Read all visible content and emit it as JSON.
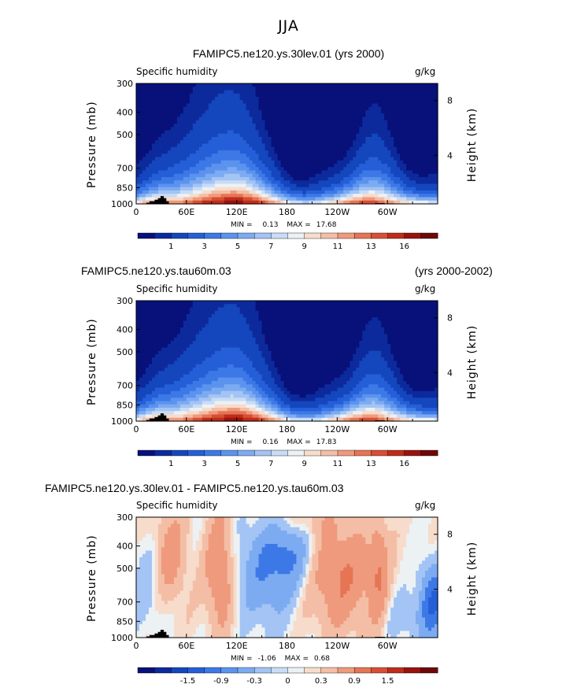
{
  "title": "JJA",
  "variable_label": "Specific humidity",
  "units_label": "g/kg",
  "y_axis_label": "Pressure (mb)",
  "y2_axis_label": "Height (km)",
  "stats_labels": {
    "min": "MIN =",
    "max": "MAX ="
  },
  "panels": [
    {
      "id": "p1",
      "run_title": "FAMIPC5.ne120.ys.30lev.01 (yrs 2000)",
      "run_years": "",
      "min": "0.13",
      "max": "17.68",
      "colorbar_labels": [
        "1",
        "3",
        "5",
        "7",
        "9",
        "11",
        "13",
        "16"
      ]
    },
    {
      "id": "p2",
      "run_title": "FAMIPC5.ne120.ys.tau60m.03",
      "run_years": "(yrs 2000-2002)",
      "min": "0.16",
      "max": "17.83",
      "colorbar_labels": [
        "1",
        "3",
        "5",
        "7",
        "9",
        "11",
        "13",
        "16"
      ]
    },
    {
      "id": "p3",
      "run_title": "FAMIPC5.ne120.ys.30lev.01 - FAMIPC5.ne120.ys.tau60m.03",
      "run_years": "",
      "min": "-1.06",
      "max": "0.68",
      "colorbar_labels": [
        "-1.5",
        "-0.9",
        "-0.3",
        "0",
        "0.3",
        "0.9",
        "1.5"
      ]
    }
  ],
  "chart_data": [
    {
      "type": "heatmap",
      "title": "FAMIPC5.ne120.ys.30lev.01 (yrs 2000)",
      "subtitle": "Specific humidity",
      "units": "g/kg",
      "xlabel": "",
      "ylabel": "Pressure (mb)",
      "y2label": "Height (km)",
      "x_ticks": [
        "0",
        "60E",
        "120E",
        "180",
        "120W",
        "60W"
      ],
      "y_ticks": [
        "300",
        "400",
        "500",
        "700",
        "850",
        "1000"
      ],
      "y2_ticks": [
        "8",
        "4"
      ],
      "ylim": [
        1000,
        300
      ],
      "contour_levels": [
        0.5,
        1,
        2,
        3,
        4,
        5,
        6,
        7,
        8,
        9,
        10,
        11,
        12,
        13,
        14,
        16,
        18
      ],
      "min": 0.13,
      "max": 17.68
    },
    {
      "type": "heatmap",
      "title": "FAMIPC5.ne120.ys.tau60m.03 (yrs 2000-2002)",
      "subtitle": "Specific humidity",
      "units": "g/kg",
      "xlabel": "",
      "ylabel": "Pressure (mb)",
      "y2label": "Height (km)",
      "x_ticks": [
        "0",
        "60E",
        "120E",
        "180",
        "120W",
        "60W"
      ],
      "y_ticks": [
        "300",
        "400",
        "500",
        "700",
        "850",
        "1000"
      ],
      "y2_ticks": [
        "8",
        "4"
      ],
      "ylim": [
        1000,
        300
      ],
      "contour_levels": [
        0.5,
        1,
        2,
        3,
        4,
        5,
        6,
        7,
        8,
        9,
        10,
        11,
        12,
        13,
        14,
        16,
        18
      ],
      "min": 0.16,
      "max": 17.83
    },
    {
      "type": "heatmap",
      "title": "FAMIPC5.ne120.ys.30lev.01 - FAMIPC5.ne120.ys.tau60m.03",
      "subtitle": "Specific humidity",
      "units": "g/kg",
      "xlabel": "",
      "ylabel": "Pressure (mb)",
      "y2label": "Height (km)",
      "x_ticks": [
        "0",
        "60E",
        "120E",
        "180",
        "120W",
        "60W"
      ],
      "y_ticks": [
        "300",
        "400",
        "500",
        "700",
        "850",
        "1000"
      ],
      "y2_ticks": [
        "8",
        "4"
      ],
      "ylim": [
        1000,
        300
      ],
      "contour_levels": [
        -1.8,
        -1.5,
        -1.2,
        -0.9,
        -0.6,
        -0.3,
        -0.1,
        0,
        0.1,
        0.3,
        0.6,
        0.9,
        1.2,
        1.5,
        1.8
      ],
      "min": -1.06,
      "max": 0.68
    }
  ],
  "colors": {
    "palette": [
      "#08107a",
      "#0c2a9c",
      "#1446bd",
      "#255fd8",
      "#3d79e6",
      "#5b93ee",
      "#7dabf2",
      "#a3c4f4",
      "#c8dcf6",
      "#ecf1f4",
      "#f7dccc",
      "#f4bea6",
      "#ef9a7c",
      "#e57555",
      "#d84f34",
      "#bf2d1a",
      "#9a120d",
      "#6e0707"
    ],
    "mountain": "#000000"
  }
}
